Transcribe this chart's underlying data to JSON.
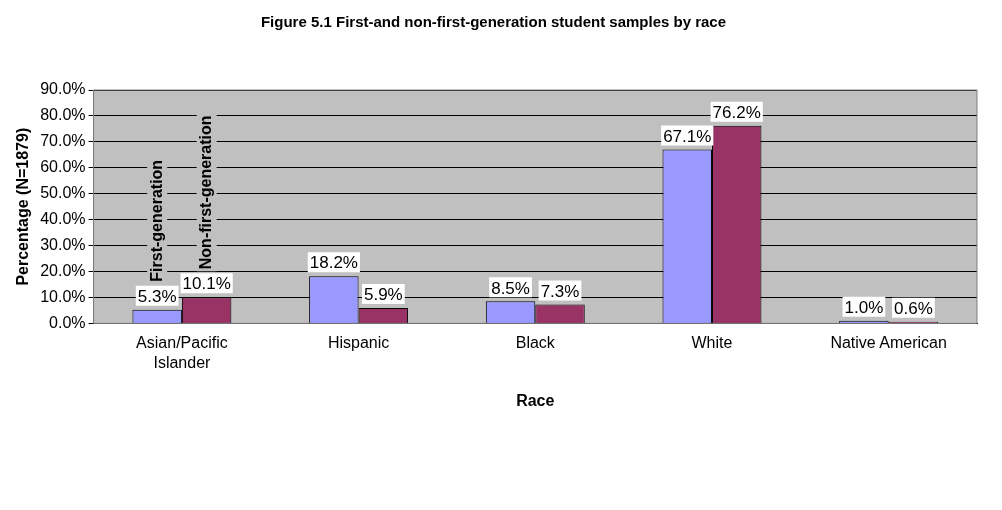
{
  "chart_data": {
    "type": "bar",
    "title": "Figure 5.1 First-and non-first-generation student samples by race",
    "xlabel": "Race",
    "ylabel": "Percentage (N=1879)",
    "categories": [
      "Asian/Pacific Islander",
      "Hispanic",
      "Black",
      "White",
      "Native American"
    ],
    "series": [
      {
        "name": "First-generation",
        "color": "#9999ff",
        "values": [
          5.3,
          18.2,
          8.5,
          67.1,
          1.0
        ],
        "value_labels": [
          "5.3%",
          "18.2%",
          "8.5%",
          "67.1%",
          "1.0%"
        ]
      },
      {
        "name": "Non-first-generation",
        "color": "#993366",
        "values": [
          10.1,
          5.9,
          7.3,
          76.2,
          0.6
        ],
        "value_labels": [
          "10.1%",
          "5.9%",
          "7.3%",
          "76.2%",
          "0.6%"
        ]
      }
    ],
    "ylim": [
      0,
      90
    ],
    "yticks": [
      {
        "value": 0,
        "label": "0.0%"
      },
      {
        "value": 10,
        "label": "10.0%"
      },
      {
        "value": 20,
        "label": "20.0%"
      },
      {
        "value": 30,
        "label": "30.0%"
      },
      {
        "value": 40,
        "label": "40.0%"
      },
      {
        "value": 50,
        "label": "50.0%"
      },
      {
        "value": 60,
        "label": "60.0%"
      },
      {
        "value": 70,
        "label": "70.0%"
      },
      {
        "value": 80,
        "label": "80.0%"
      },
      {
        "value": 90,
        "label": "90.0%"
      }
    ],
    "grid": "y",
    "legend": false
  }
}
